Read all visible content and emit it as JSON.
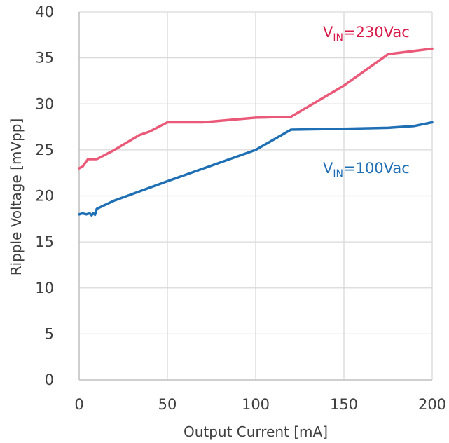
{
  "chart_data": {
    "type": "line",
    "xlabel": "Output Current [mA]",
    "ylabel": "Ripple Voltage  [mVpp]",
    "xlim": [
      0,
      200
    ],
    "ylim": [
      0,
      40
    ],
    "x_ticks": [
      "0",
      "50",
      "100",
      "150",
      "200"
    ],
    "y_ticks": [
      "0",
      "5",
      "10",
      "15",
      "20",
      "25",
      "30",
      "35",
      "40"
    ],
    "grid": true,
    "series": [
      {
        "name": "VIN=230Vac",
        "color": "#ea5a78",
        "points": [
          [
            0,
            23
          ],
          [
            2,
            23.2
          ],
          [
            5,
            24
          ],
          [
            10,
            24
          ],
          [
            20,
            25
          ],
          [
            34,
            26.6
          ],
          [
            40,
            27
          ],
          [
            50,
            28
          ],
          [
            70,
            28
          ],
          [
            100,
            28.5
          ],
          [
            120,
            28.6
          ],
          [
            150,
            32
          ],
          [
            175,
            35.4
          ],
          [
            200,
            36
          ]
        ]
      },
      {
        "name": "VIN=100Vac",
        "color": "#1f6fb4",
        "points": [
          [
            0,
            18
          ],
          [
            2,
            18.1
          ],
          [
            4,
            18
          ],
          [
            6,
            18.1
          ],
          [
            7,
            17.9
          ],
          [
            8,
            18.1
          ],
          [
            9,
            17.95
          ],
          [
            10,
            18.6
          ],
          [
            20,
            19.5
          ],
          [
            50,
            21.6
          ],
          [
            100,
            25
          ],
          [
            120,
            27.2
          ],
          [
            150,
            27.3
          ],
          [
            175,
            27.4
          ],
          [
            190,
            27.6
          ],
          [
            200,
            28
          ]
        ]
      }
    ],
    "annotations": [
      {
        "series": 0,
        "main": "V",
        "sub": "IN",
        "rest": "=230Vac",
        "color": "#d81b4a"
      },
      {
        "series": 1,
        "main": "V",
        "sub": "IN",
        "rest": "=100Vac",
        "color": "#1f6fb4"
      }
    ]
  }
}
